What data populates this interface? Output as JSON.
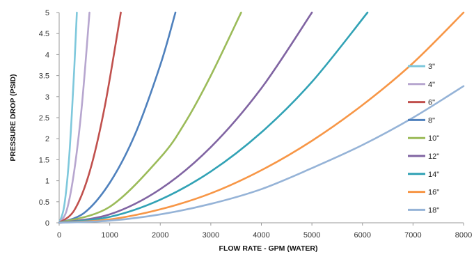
{
  "chart_data": {
    "type": "line",
    "xlabel": "FLOW RATE - GPM (WATER)",
    "ylabel": "PRESSURE DROP (PSID)",
    "xlim": [
      0,
      8000
    ],
    "ylim": [
      0,
      5
    ],
    "x_ticks": [
      "0",
      "1000",
      "2000",
      "3000",
      "4000",
      "5000",
      "6000",
      "7000",
      "8000"
    ],
    "y_ticks": [
      "0",
      "0.5",
      "1",
      "1.5",
      "2",
      "2.5",
      "3",
      "3.5",
      "4",
      "4.5",
      "5"
    ],
    "grid": false,
    "legend_position": "right",
    "series": [
      {
        "name": "3\"",
        "color": "#7ec8dc",
        "x": [
          0,
          100,
          200,
          300,
          350
        ],
        "y": [
          0,
          0.4,
          1.6,
          3.7,
          5.0
        ]
      },
      {
        "name": "4\"",
        "color": "#b7a6cf",
        "x": [
          0,
          150,
          300,
          450,
          600
        ],
        "y": [
          0,
          0.3,
          1.25,
          2.8,
          5.0
        ]
      },
      {
        "name": "6\"",
        "color": "#c0504d",
        "x": [
          0,
          300,
          600,
          900,
          1220
        ],
        "y": [
          0,
          0.3,
          1.2,
          2.75,
          5.0
        ]
      },
      {
        "name": "8\"",
        "color": "#4f81bd",
        "x": [
          0,
          500,
          1000,
          1500,
          2000,
          2300
        ],
        "y": [
          0,
          0.24,
          0.95,
          2.1,
          3.75,
          5.0
        ]
      },
      {
        "name": "10\"",
        "color": "#9bbb59",
        "x": [
          0,
          1000,
          2000,
          2500,
          3000,
          3600
        ],
        "y": [
          0,
          0.38,
          1.55,
          2.4,
          3.5,
          5.0
        ]
      },
      {
        "name": "12\"",
        "color": "#8064a2",
        "x": [
          0,
          1000,
          2000,
          3000,
          4000,
          5000
        ],
        "y": [
          0,
          0.2,
          0.8,
          1.8,
          3.2,
          5.0
        ]
      },
      {
        "name": "14\"",
        "color": "#31a2b5",
        "x": [
          0,
          1000,
          2000,
          3000,
          4000,
          5000,
          6100
        ],
        "y": [
          0,
          0.14,
          0.55,
          1.22,
          2.15,
          3.35,
          5.0
        ]
      },
      {
        "name": "16\"",
        "color": "#f79646",
        "x": [
          0,
          1000,
          2000,
          3000,
          4000,
          5000,
          6000,
          7000,
          8000
        ],
        "y": [
          0,
          0.08,
          0.32,
          0.7,
          1.25,
          1.95,
          2.8,
          3.8,
          5.0
        ]
      },
      {
        "name": "18\"",
        "color": "#95b3d7",
        "x": [
          0,
          1000,
          2000,
          3000,
          4000,
          5000,
          6000,
          7000,
          8000
        ],
        "y": [
          0,
          0.05,
          0.2,
          0.45,
          0.8,
          1.3,
          1.85,
          2.5,
          3.25
        ]
      }
    ]
  }
}
